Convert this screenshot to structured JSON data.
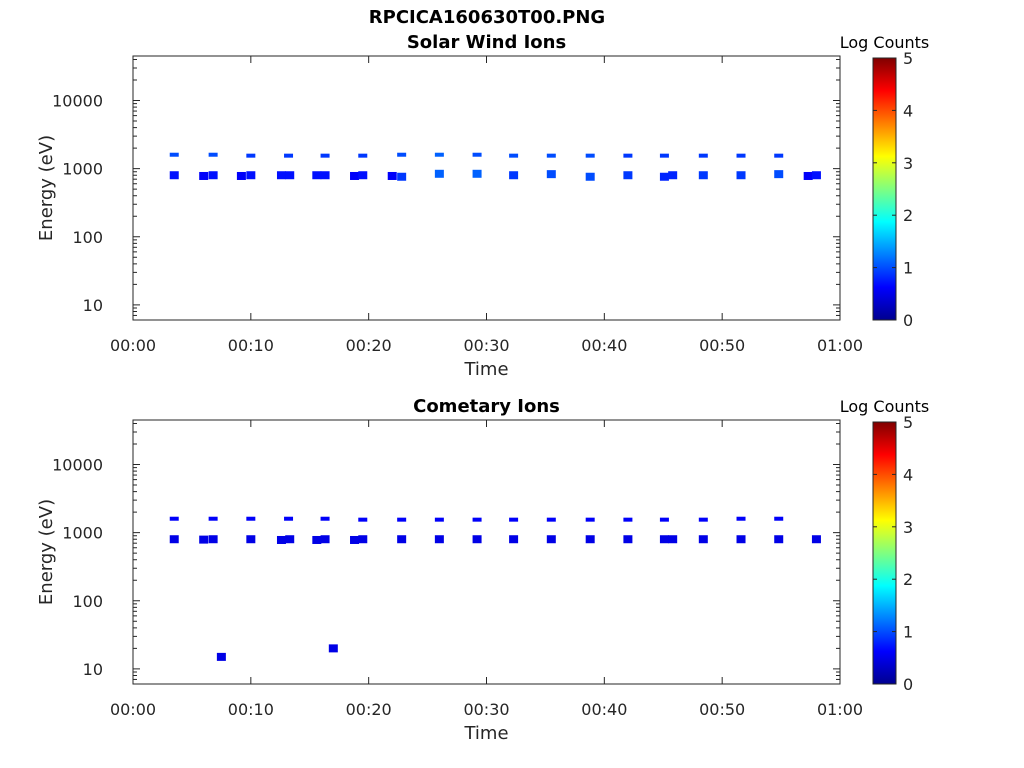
{
  "figure": {
    "filename_title": "RPCICA160630T00.PNG"
  },
  "chart_data": [
    {
      "type": "heatmap",
      "title": "Solar Wind Ions",
      "xlabel": "Time",
      "ylabel": "Energy (eV)",
      "x_ticks": [
        "00:00",
        "00:10",
        "00:20",
        "00:30",
        "00:40",
        "00:50",
        "01:00"
      ],
      "x_range_minutes": [
        0,
        60
      ],
      "y_scale": "log",
      "y_ticks": [
        "10",
        "100",
        "1000",
        "10000"
      ],
      "y_range": [
        6,
        45000
      ],
      "colorbar": {
        "label": "Log Counts",
        "ticks": [
          "0",
          "1",
          "2",
          "3",
          "4",
          "5"
        ],
        "range": [
          0,
          5
        ],
        "colormap": "jet"
      },
      "points": [
        {
          "t": 3.5,
          "e": 1600,
          "c": 0.7
        },
        {
          "t": 6.8,
          "e": 1600,
          "c": 0.7
        },
        {
          "t": 10.0,
          "e": 1550,
          "c": 0.6
        },
        {
          "t": 13.2,
          "e": 1550,
          "c": 0.6
        },
        {
          "t": 16.3,
          "e": 1550,
          "c": 0.6
        },
        {
          "t": 19.5,
          "e": 1550,
          "c": 0.6
        },
        {
          "t": 22.8,
          "e": 1600,
          "c": 0.7
        },
        {
          "t": 26.0,
          "e": 1600,
          "c": 0.8
        },
        {
          "t": 29.2,
          "e": 1600,
          "c": 0.7
        },
        {
          "t": 32.3,
          "e": 1550,
          "c": 0.7
        },
        {
          "t": 35.5,
          "e": 1550,
          "c": 0.7
        },
        {
          "t": 38.8,
          "e": 1550,
          "c": 0.7
        },
        {
          "t": 42.0,
          "e": 1550,
          "c": 0.6
        },
        {
          "t": 45.1,
          "e": 1550,
          "c": 0.6
        },
        {
          "t": 48.4,
          "e": 1550,
          "c": 0.6
        },
        {
          "t": 51.6,
          "e": 1550,
          "c": 0.6
        },
        {
          "t": 54.8,
          "e": 1550,
          "c": 0.6
        },
        {
          "t": 3.5,
          "e": 800,
          "c": 0.4
        },
        {
          "t": 6.0,
          "e": 780,
          "c": 0.3
        },
        {
          "t": 6.8,
          "e": 800,
          "c": 0.4
        },
        {
          "t": 9.2,
          "e": 780,
          "c": 0.3
        },
        {
          "t": 10.0,
          "e": 800,
          "c": 0.4
        },
        {
          "t": 12.6,
          "e": 800,
          "c": 0.4
        },
        {
          "t": 13.3,
          "e": 800,
          "c": 0.4
        },
        {
          "t": 15.6,
          "e": 800,
          "c": 0.4
        },
        {
          "t": 16.3,
          "e": 800,
          "c": 0.4
        },
        {
          "t": 18.8,
          "e": 780,
          "c": 0.3
        },
        {
          "t": 19.5,
          "e": 800,
          "c": 0.4
        },
        {
          "t": 22.0,
          "e": 780,
          "c": 0.3
        },
        {
          "t": 22.8,
          "e": 760,
          "c": 0.6
        },
        {
          "t": 26.0,
          "e": 840,
          "c": 0.8
        },
        {
          "t": 29.2,
          "e": 840,
          "c": 0.8
        },
        {
          "t": 32.3,
          "e": 800,
          "c": 0.6
        },
        {
          "t": 35.5,
          "e": 830,
          "c": 0.7
        },
        {
          "t": 38.8,
          "e": 760,
          "c": 0.7
        },
        {
          "t": 42.0,
          "e": 800,
          "c": 0.6
        },
        {
          "t": 45.1,
          "e": 760,
          "c": 0.5
        },
        {
          "t": 45.8,
          "e": 800,
          "c": 0.5
        },
        {
          "t": 48.4,
          "e": 800,
          "c": 0.6
        },
        {
          "t": 51.6,
          "e": 800,
          "c": 0.6
        },
        {
          "t": 54.8,
          "e": 830,
          "c": 0.7
        },
        {
          "t": 57.3,
          "e": 780,
          "c": 0.3
        },
        {
          "t": 58.0,
          "e": 800,
          "c": 0.4
        }
      ]
    },
    {
      "type": "heatmap",
      "title": "Cometary Ions",
      "xlabel": "Time",
      "ylabel": "Energy (eV)",
      "x_ticks": [
        "00:00",
        "00:10",
        "00:20",
        "00:30",
        "00:40",
        "00:50",
        "01:00"
      ],
      "x_range_minutes": [
        0,
        60
      ],
      "y_scale": "log",
      "y_ticks": [
        "10",
        "100",
        "1000",
        "10000"
      ],
      "y_range": [
        6,
        45000
      ],
      "colorbar": {
        "label": "Log Counts",
        "ticks": [
          "0",
          "1",
          "2",
          "3",
          "4",
          "5"
        ],
        "range": [
          0,
          5
        ],
        "colormap": "jet"
      },
      "points": [
        {
          "t": 3.5,
          "e": 1600,
          "c": 0.3
        },
        {
          "t": 6.8,
          "e": 1600,
          "c": 0.3
        },
        {
          "t": 10.0,
          "e": 1600,
          "c": 0.3
        },
        {
          "t": 13.2,
          "e": 1600,
          "c": 0.3
        },
        {
          "t": 16.3,
          "e": 1600,
          "c": 0.3
        },
        {
          "t": 19.5,
          "e": 1550,
          "c": 0.3
        },
        {
          "t": 22.8,
          "e": 1550,
          "c": 0.3
        },
        {
          "t": 26.0,
          "e": 1550,
          "c": 0.3
        },
        {
          "t": 29.2,
          "e": 1550,
          "c": 0.3
        },
        {
          "t": 32.3,
          "e": 1550,
          "c": 0.3
        },
        {
          "t": 35.5,
          "e": 1550,
          "c": 0.3
        },
        {
          "t": 38.8,
          "e": 1550,
          "c": 0.3
        },
        {
          "t": 42.0,
          "e": 1550,
          "c": 0.3
        },
        {
          "t": 45.1,
          "e": 1550,
          "c": 0.3
        },
        {
          "t": 48.4,
          "e": 1550,
          "c": 0.3
        },
        {
          "t": 51.6,
          "e": 1600,
          "c": 0.3
        },
        {
          "t": 54.8,
          "e": 1600,
          "c": 0.3
        },
        {
          "t": 3.5,
          "e": 800,
          "c": 0.2
        },
        {
          "t": 6.0,
          "e": 790,
          "c": 0.2
        },
        {
          "t": 6.8,
          "e": 800,
          "c": 0.2
        },
        {
          "t": 10.0,
          "e": 800,
          "c": 0.2
        },
        {
          "t": 12.6,
          "e": 780,
          "c": 0.2
        },
        {
          "t": 13.3,
          "e": 800,
          "c": 0.2
        },
        {
          "t": 15.6,
          "e": 780,
          "c": 0.2
        },
        {
          "t": 16.3,
          "e": 800,
          "c": 0.2
        },
        {
          "t": 18.8,
          "e": 780,
          "c": 0.2
        },
        {
          "t": 19.5,
          "e": 800,
          "c": 0.2
        },
        {
          "t": 22.8,
          "e": 800,
          "c": 0.2
        },
        {
          "t": 26.0,
          "e": 800,
          "c": 0.2
        },
        {
          "t": 29.2,
          "e": 800,
          "c": 0.2
        },
        {
          "t": 32.3,
          "e": 800,
          "c": 0.2
        },
        {
          "t": 35.5,
          "e": 800,
          "c": 0.2
        },
        {
          "t": 38.8,
          "e": 800,
          "c": 0.2
        },
        {
          "t": 42.0,
          "e": 800,
          "c": 0.2
        },
        {
          "t": 45.1,
          "e": 800,
          "c": 0.2
        },
        {
          "t": 45.8,
          "e": 800,
          "c": 0.2
        },
        {
          "t": 48.4,
          "e": 800,
          "c": 0.2
        },
        {
          "t": 51.6,
          "e": 800,
          "c": 0.2
        },
        {
          "t": 54.8,
          "e": 800,
          "c": 0.2
        },
        {
          "t": 58.0,
          "e": 800,
          "c": 0.2
        },
        {
          "t": 7.5,
          "e": 15,
          "c": 0.2
        },
        {
          "t": 17.0,
          "e": 20,
          "c": 0.2
        }
      ]
    }
  ]
}
